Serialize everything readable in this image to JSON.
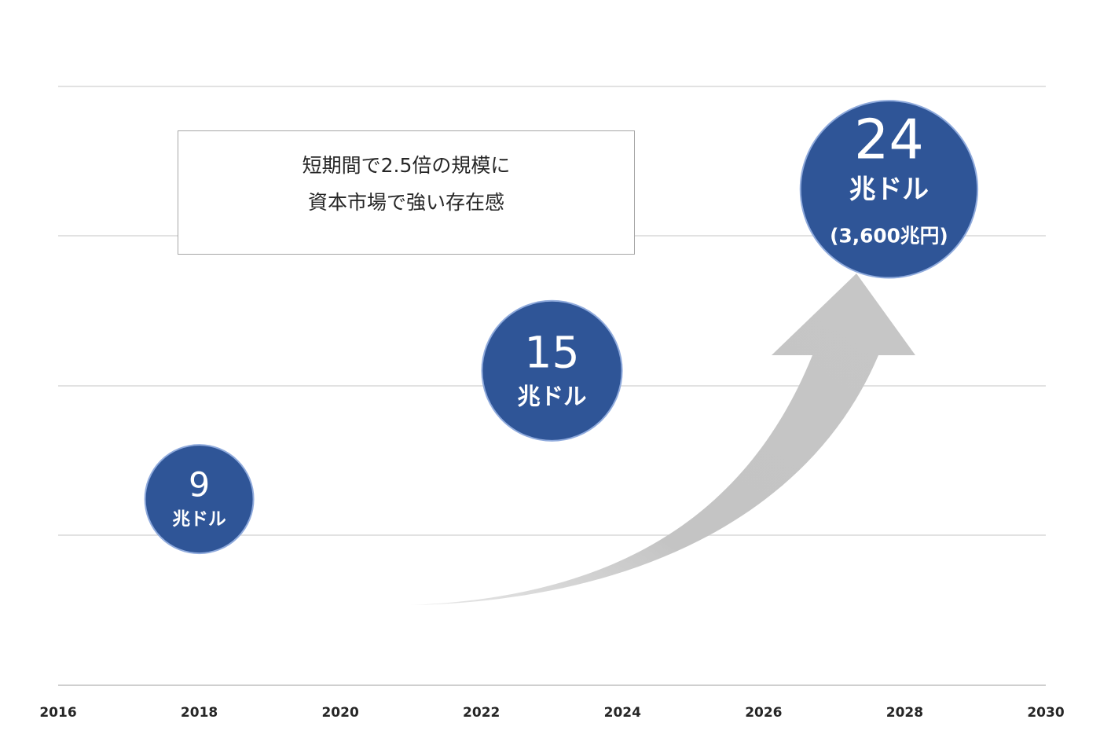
{
  "chart_data": {
    "type": "scatter",
    "title": "",
    "xlabel": "",
    "ylabel": "",
    "xlim": [
      2016,
      2030
    ],
    "x_ticks": [
      "2016",
      "2018",
      "2020",
      "2022",
      "2024",
      "2026",
      "2028",
      "2030"
    ],
    "ylim": [
      0,
      28
    ],
    "grid": true,
    "points": [
      {
        "x": 2018,
        "y": 9,
        "value": "9",
        "unit": "兆ドル",
        "sub": ""
      },
      {
        "x": 2023,
        "y": 15,
        "value": "15",
        "unit": "兆ドル",
        "sub": ""
      },
      {
        "x": 2028,
        "y": 24,
        "value": "24",
        "unit": "兆ドル",
        "sub": "(3,600兆円)"
      }
    ],
    "annotation": {
      "lines": [
        "短期間で2.5倍の規模に",
        "資本市場で強い存在感"
      ]
    },
    "trend_arrow": true
  },
  "colors": {
    "bubble": "#2f5597",
    "bubble_stroke": "#8faadc",
    "grid": "#d9d9d9",
    "axis": "#bfbfbf",
    "arrow": "#c6c6c6"
  }
}
